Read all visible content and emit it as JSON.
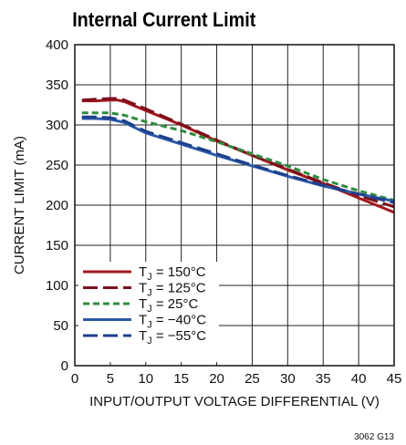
{
  "chart_data": {
    "type": "line",
    "title": "Internal Current Limit",
    "xlabel": "INPUT/OUTPUT VOLTAGE DIFFERENTIAL (V)",
    "ylabel": "CURRENT LIMIT (mA)",
    "xlim": [
      0,
      45
    ],
    "ylim": [
      0,
      400
    ],
    "xticks": [
      0,
      5,
      10,
      15,
      20,
      25,
      30,
      35,
      40,
      45
    ],
    "yticks": [
      0,
      50,
      100,
      150,
      200,
      250,
      300,
      350,
      400
    ],
    "grid": true,
    "legend_position": "bottom-left",
    "series": [
      {
        "name_prefix": "T",
        "name_sub": "J",
        "name_suffix": " = 150°C",
        "color": "#a3161c",
        "style": "solid",
        "x": [
          1,
          3,
          5,
          6,
          7,
          10,
          15,
          20,
          25,
          30,
          35,
          40,
          45
        ],
        "y": [
          330,
          330,
          331,
          331,
          329,
          318,
          300,
          280,
          262,
          244,
          227,
          209,
          191
        ]
      },
      {
        "name_prefix": "T",
        "name_sub": "J",
        "name_suffix": " = 125°C",
        "color": "#7a0f1b",
        "style": "long-dash",
        "x": [
          1,
          3,
          5,
          6,
          7,
          10,
          15,
          20,
          25,
          30,
          35,
          40,
          45
        ],
        "y": [
          331,
          332,
          333,
          333,
          331,
          320,
          301,
          281,
          262,
          245,
          228,
          212,
          198
        ]
      },
      {
        "name_prefix": "T",
        "name_sub": "J",
        "name_suffix": " = 25°C",
        "color": "#2e8b3e",
        "style": "dash",
        "x": [
          1,
          3,
          5,
          7,
          10,
          15,
          20,
          25,
          30,
          35,
          40,
          45
        ],
        "y": [
          315,
          315,
          315,
          312,
          304,
          293,
          279,
          264,
          249,
          232,
          218,
          206
        ]
      },
      {
        "name_prefix": "T",
        "name_sub": "J",
        "name_suffix": " = −40°C",
        "color": "#2c5aa8",
        "style": "solid",
        "x": [
          1,
          3,
          5,
          7,
          10,
          15,
          20,
          25,
          30,
          35,
          40,
          45
        ],
        "y": [
          308,
          308,
          307,
          303,
          290,
          276,
          262,
          249,
          236,
          224,
          214,
          205
        ]
      },
      {
        "name_prefix": "T",
        "name_sub": "J",
        "name_suffix": " = −55°C",
        "color": "#1e3f8a",
        "style": "long-dash",
        "x": [
          1,
          3,
          5,
          7,
          10,
          15,
          20,
          25,
          30,
          35,
          40,
          45
        ],
        "y": [
          310,
          310,
          309,
          305,
          292,
          278,
          264,
          250,
          237,
          225,
          214,
          203
        ]
      }
    ],
    "figure_id": "3062 G13"
  }
}
